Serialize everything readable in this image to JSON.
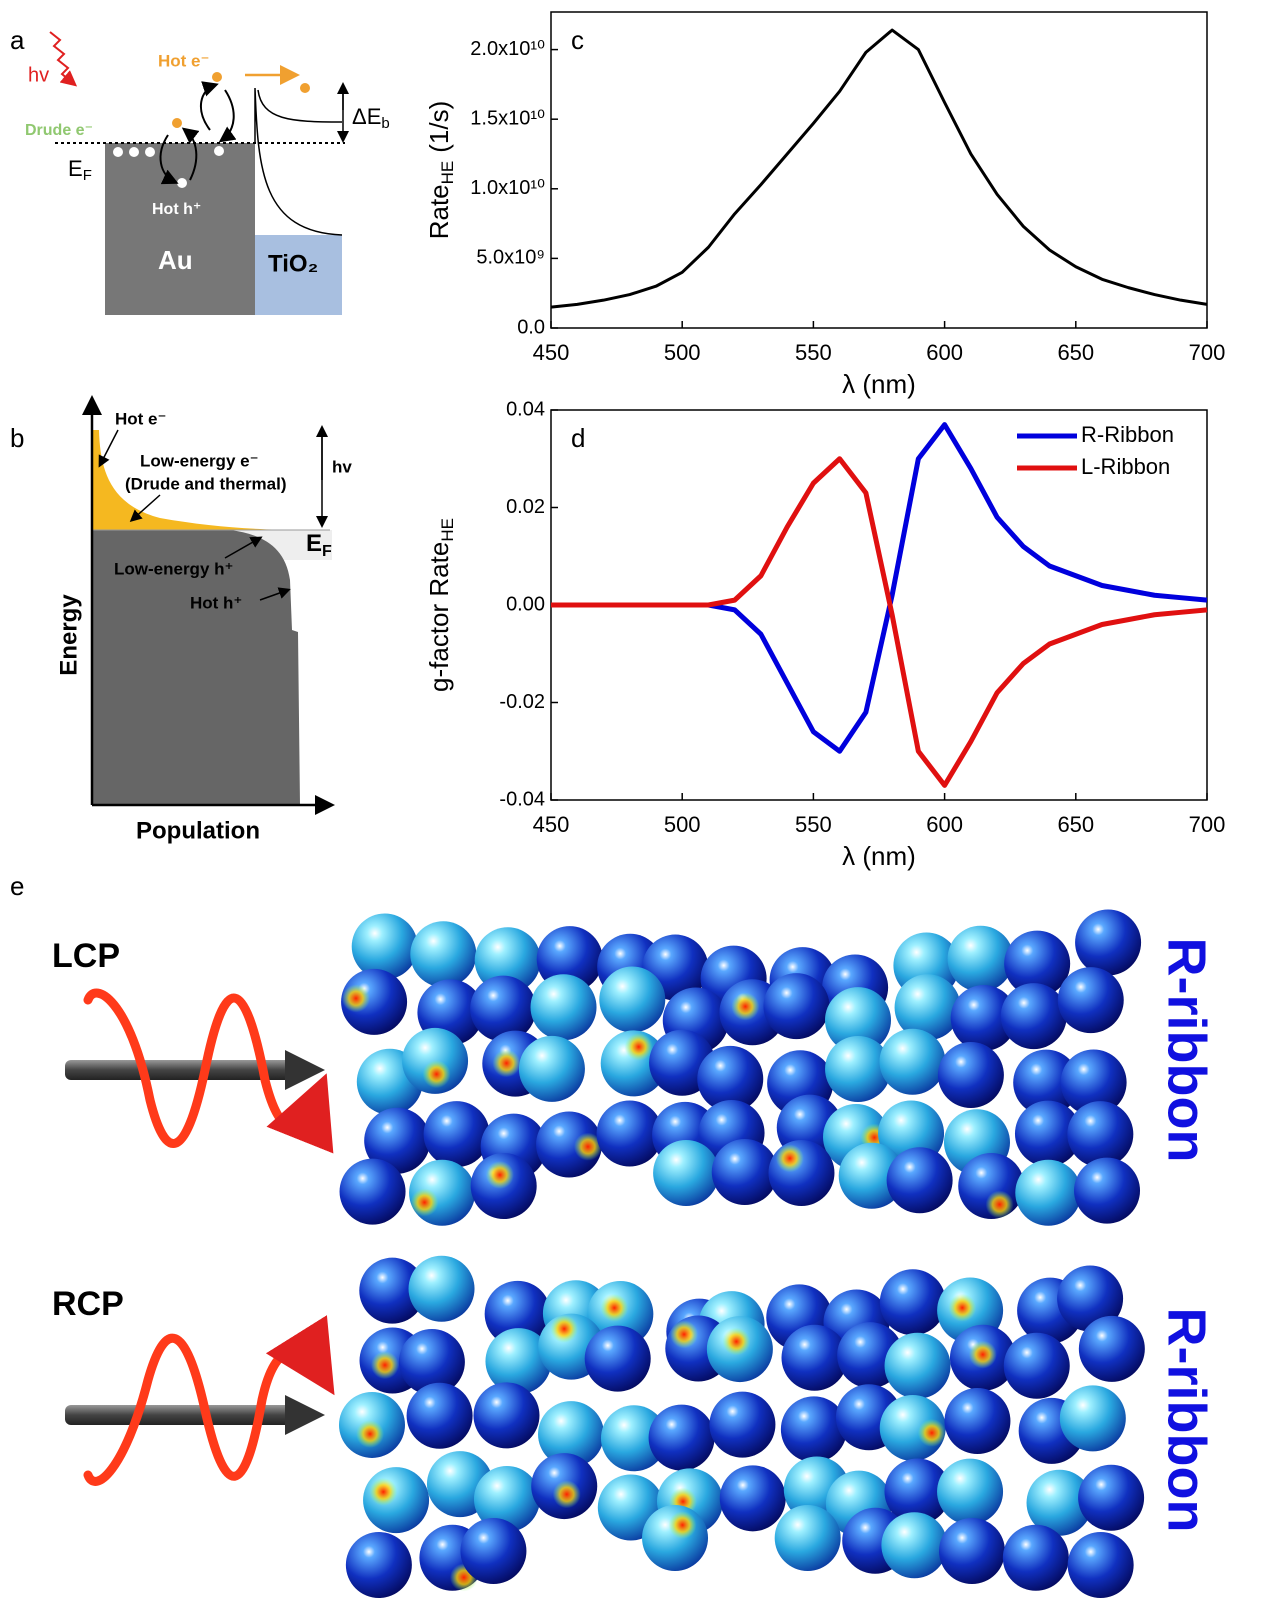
{
  "panel_a": {
    "label": "a",
    "photon": "hv",
    "hot_e": "Hot e⁻",
    "drude_e": "Drude e⁻",
    "fermi": "E",
    "fermi_sub": "F",
    "hot_h": "Hot h⁺",
    "metal": "Au",
    "semiconductor": "TiO₂",
    "barrier": "ΔE",
    "barrier_sub": "b"
  },
  "panel_b": {
    "label": "b",
    "hot_e": "Hot e⁻",
    "low_e": "Low-energy e⁻",
    "low_e_note": "(Drude and thermal)",
    "photon": "hv",
    "fermi": "E",
    "fermi_sub": "F",
    "low_h": "Low-energy h⁺",
    "hot_h": "Hot h⁺",
    "ylabel": "Energy",
    "xlabel": "Population"
  },
  "panel_e": {
    "label": "e",
    "top_light": "LCP",
    "bottom_light": "RCP",
    "top_structure": "R-ribbon",
    "bottom_structure": "R-ribbon"
  },
  "chart_data": [
    {
      "type": "line",
      "panel_label": "c",
      "ylabel": "Rate",
      "ylabel_sub": "HE",
      "ylabel_unit": "(1/s)",
      "xlabel": "λ (nm)",
      "x": [
        450,
        460,
        470,
        480,
        490,
        500,
        510,
        520,
        530,
        540,
        550,
        560,
        570,
        580,
        590,
        600,
        610,
        620,
        630,
        640,
        650,
        660,
        670,
        680,
        690,
        700
      ],
      "series": [
        {
          "name": "Rate",
          "color": "#000000",
          "values": [
            1500000000.0,
            1700000000.0,
            2000000000.0,
            2400000000.0,
            3000000000.0,
            4000000000.0,
            5800000000.0,
            8200000000.0,
            10300000000.0,
            12500000000.0,
            14700000000.0,
            17000000000.0,
            19800000000.0,
            21400000000.0,
            20000000000.0,
            16200000000.0,
            12500000000.0,
            9600000000.0,
            7300000000.0,
            5600000000.0,
            4400000000.0,
            3500000000.0,
            2900000000.0,
            2400000000.0,
            2000000000.0,
            1700000000.0
          ]
        }
      ],
      "xlim": [
        450,
        700
      ],
      "xticks": [
        450,
        500,
        550,
        600,
        650,
        700
      ],
      "ylim": [
        0,
        22700000000.0
      ],
      "yticks": [
        {
          "value": 0,
          "label": "0.0"
        },
        {
          "value": 5000000000.0,
          "label": "5.0x10⁹"
        },
        {
          "value": 10000000000.0,
          "label": "1.0x10¹⁰"
        },
        {
          "value": 15000000000.0,
          "label": "1.5x10¹⁰"
        },
        {
          "value": 20000000000.0,
          "label": "2.0x10¹⁰"
        }
      ],
      "grid": false,
      "legend": false
    },
    {
      "type": "line",
      "panel_label": "d",
      "ylabel": "g-factor Rate",
      "ylabel_sub": "HE",
      "xlabel": "λ (nm)",
      "x": [
        450,
        460,
        470,
        480,
        490,
        500,
        510,
        520,
        530,
        540,
        550,
        560,
        570,
        580,
        590,
        600,
        610,
        620,
        630,
        640,
        650,
        660,
        670,
        680,
        690,
        700
      ],
      "series": [
        {
          "name": "R-Ribbon",
          "color": "#0000dd",
          "values": [
            0,
            0,
            0,
            0,
            0,
            0,
            0,
            -0.001,
            -0.006,
            -0.016,
            -0.026,
            -0.03,
            -0.022,
            0.002,
            0.03,
            0.037,
            0.028,
            0.018,
            0.012,
            0.008,
            0.006,
            0.004,
            0.003,
            0.002,
            0.0015,
            0.001
          ]
        },
        {
          "name": "L-Ribbon",
          "color": "#e01010",
          "values": [
            0,
            0,
            0,
            0,
            0,
            0,
            0,
            0.001,
            0.006,
            0.016,
            0.025,
            0.03,
            0.023,
            -0.002,
            -0.03,
            -0.037,
            -0.028,
            -0.018,
            -0.012,
            -0.008,
            -0.006,
            -0.004,
            -0.003,
            -0.002,
            -0.0015,
            -0.001
          ]
        }
      ],
      "xlim": [
        450,
        700
      ],
      "xticks": [
        450,
        500,
        550,
        600,
        650,
        700
      ],
      "ylim": [
        -0.04,
        0.04
      ],
      "yticks": [
        -0.04,
        -0.02,
        {
          "value": 0,
          "label": "0.00"
        },
        0.02,
        0.04
      ],
      "grid": false,
      "legend": "upper right"
    }
  ]
}
